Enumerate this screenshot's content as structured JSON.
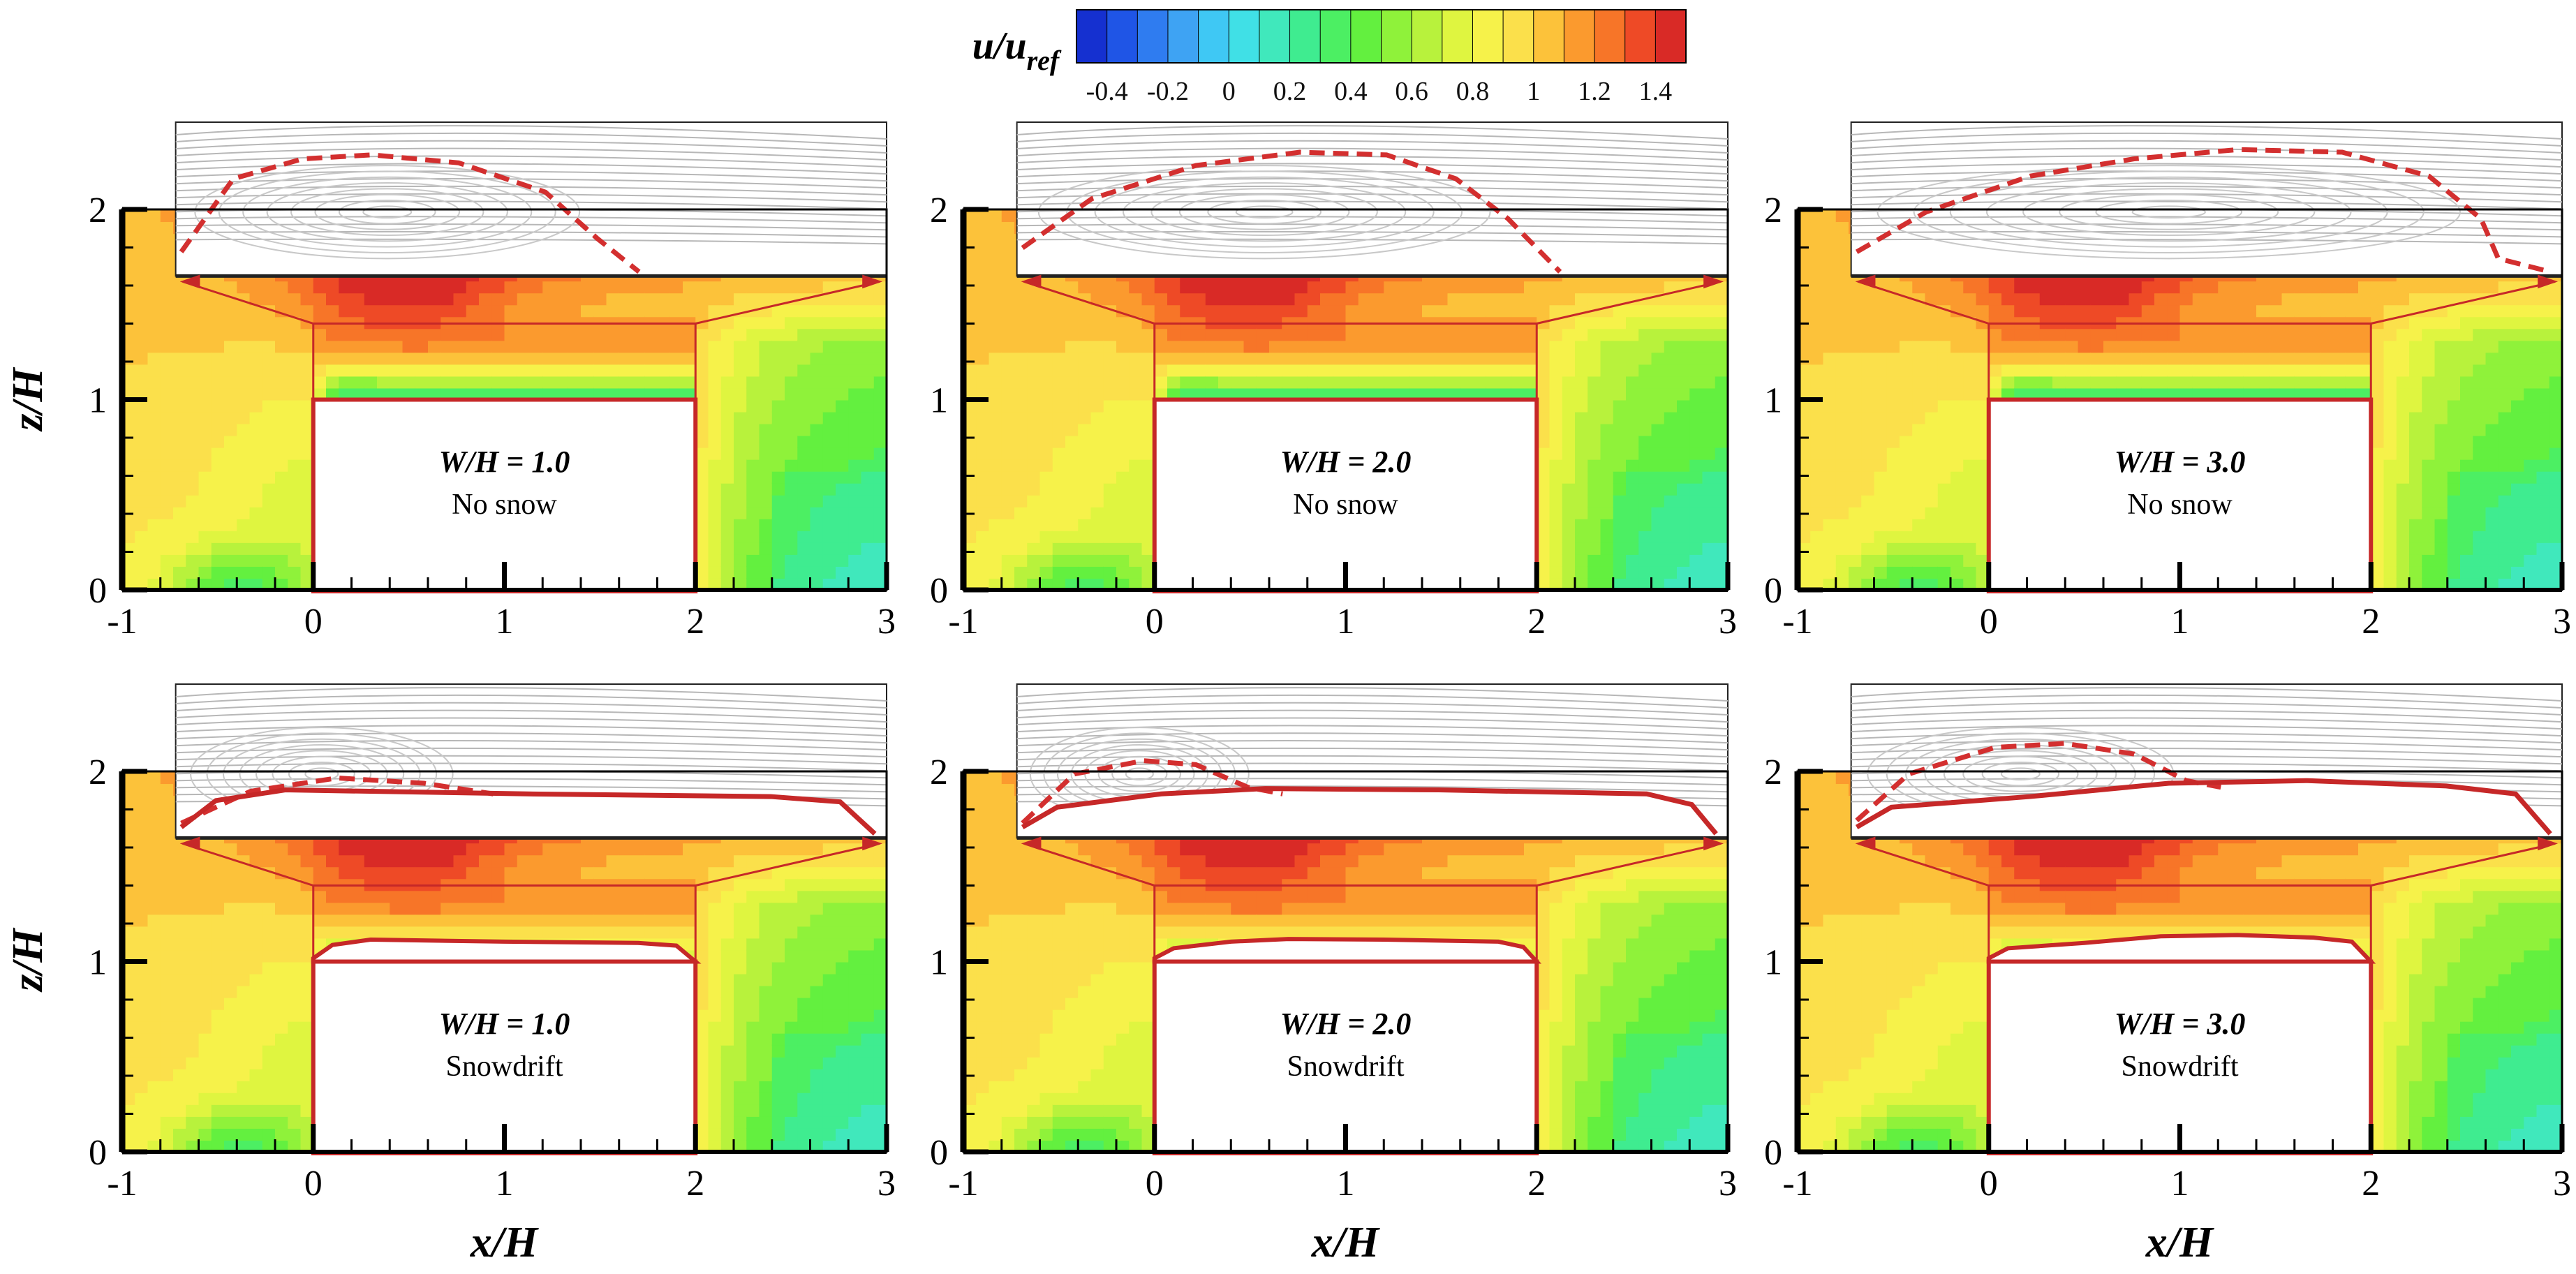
{
  "figure": {
    "colorbar": {
      "label_main": "u/u",
      "label_sub": "ref",
      "ticks": [
        "-0.4",
        "-0.2",
        "0",
        "0.2",
        "0.4",
        "0.6",
        "0.8",
        "1",
        "1.2",
        "1.4"
      ],
      "tick_values": [
        -0.4,
        -0.2,
        0,
        0.2,
        0.4,
        0.6,
        0.8,
        1.0,
        1.2,
        1.4
      ],
      "range": [
        -0.5,
        1.5
      ],
      "levels": 20,
      "colors": [
        "#1530d0",
        "#1f55e6",
        "#2f7cf0",
        "#3ea3f3",
        "#3fc8f4",
        "#40e0e6",
        "#40e8bc",
        "#3fec90",
        "#4cef63",
        "#63f03f",
        "#8ff23a",
        "#b8f23c",
        "#dff540",
        "#f6f24a",
        "#fbe04b",
        "#fcc23a",
        "#fb9a2e",
        "#f77528",
        "#ee4a26",
        "#d92a26"
      ]
    },
    "axis_labels": {
      "x": "x/H",
      "z": "z/H"
    }
  },
  "chart_data": {
    "type": "heatmap",
    "variable": "u/u_ref",
    "xlabel": "x/H",
    "ylabel": "z/H",
    "xlim": [
      -1,
      3
    ],
    "ylim": [
      0,
      2
    ],
    "xticks": [
      "-1",
      "0",
      "1",
      "2",
      "3"
    ],
    "yticks": [
      "0",
      "1",
      "2"
    ],
    "building": {
      "x_start": 0,
      "x_end": 2,
      "height": 1
    },
    "zoom_window": {
      "x": [
        0,
        2
      ],
      "z": [
        1,
        1.4
      ]
    },
    "panels": [
      {
        "row": 0,
        "col": 0,
        "width_ratio_label": "W/H = 1.0",
        "case_label": "No snow",
        "W_over_H": 1.0,
        "snow": false,
        "separation_line": [
          [
            0.0,
            0.15
          ],
          [
            0.15,
            0.7
          ],
          [
            0.35,
            0.85
          ],
          [
            0.55,
            0.88
          ],
          [
            0.8,
            0.82
          ],
          [
            1.05,
            0.6
          ],
          [
            1.2,
            0.25
          ],
          [
            1.32,
            0.0
          ]
        ],
        "snow_surface": []
      },
      {
        "row": 0,
        "col": 1,
        "width_ratio_label": "W/H = 2.0",
        "case_label": "No snow",
        "W_over_H": 2.0,
        "snow": false,
        "separation_line": [
          [
            0.0,
            0.18
          ],
          [
            0.2,
            0.55
          ],
          [
            0.5,
            0.8
          ],
          [
            0.8,
            0.9
          ],
          [
            1.05,
            0.88
          ],
          [
            1.25,
            0.7
          ],
          [
            1.4,
            0.4
          ],
          [
            1.55,
            0.0
          ]
        ],
        "snow_surface": []
      },
      {
        "row": 0,
        "col": 2,
        "width_ratio_label": "W/H = 3.0",
        "case_label": "No snow",
        "W_over_H": 3.0,
        "snow": false,
        "separation_line": [
          [
            0.0,
            0.15
          ],
          [
            0.2,
            0.45
          ],
          [
            0.5,
            0.72
          ],
          [
            0.8,
            0.85
          ],
          [
            1.1,
            0.92
          ],
          [
            1.4,
            0.9
          ],
          [
            1.65,
            0.72
          ],
          [
            1.8,
            0.4
          ],
          [
            1.85,
            0.1
          ],
          [
            2.0,
            0.0
          ]
        ],
        "snow_surface": []
      },
      {
        "row": 1,
        "col": 0,
        "width_ratio_label": "W/H = 1.0",
        "case_label": "Snowdrift",
        "W_over_H": 1.0,
        "snow": true,
        "separation_line": [
          [
            0.0,
            0.08
          ],
          [
            0.2,
            0.32
          ],
          [
            0.45,
            0.42
          ],
          [
            0.7,
            0.38
          ],
          [
            0.9,
            0.3
          ]
        ],
        "snow_surface": [
          [
            0.0,
            0.05
          ],
          [
            0.1,
            0.25
          ],
          [
            0.3,
            0.33
          ],
          [
            1.0,
            0.3
          ],
          [
            1.7,
            0.28
          ],
          [
            1.9,
            0.24
          ],
          [
            2.0,
            0.0
          ]
        ]
      },
      {
        "row": 1,
        "col": 1,
        "width_ratio_label": "W/H = 2.0",
        "case_label": "Snowdrift",
        "W_over_H": 2.0,
        "snow": true,
        "separation_line": [
          [
            0.0,
            0.08
          ],
          [
            0.15,
            0.45
          ],
          [
            0.35,
            0.55
          ],
          [
            0.5,
            0.52
          ],
          [
            0.65,
            0.35
          ],
          [
            0.75,
            0.3
          ]
        ],
        "snow_surface": [
          [
            0.0,
            0.05
          ],
          [
            0.1,
            0.2
          ],
          [
            0.4,
            0.3
          ],
          [
            0.7,
            0.34
          ],
          [
            1.2,
            0.33
          ],
          [
            1.8,
            0.3
          ],
          [
            1.93,
            0.22
          ],
          [
            2.0,
            0.0
          ]
        ]
      },
      {
        "row": 1,
        "col": 2,
        "width_ratio_label": "W/H = 3.0",
        "case_label": "Snowdrift",
        "W_over_H": 3.0,
        "snow": true,
        "separation_line": [
          [
            0.0,
            0.1
          ],
          [
            0.15,
            0.45
          ],
          [
            0.4,
            0.65
          ],
          [
            0.6,
            0.68
          ],
          [
            0.8,
            0.6
          ],
          [
            0.95,
            0.4
          ],
          [
            1.05,
            0.35
          ]
        ],
        "snow_surface": [
          [
            0.0,
            0.05
          ],
          [
            0.1,
            0.2
          ],
          [
            0.5,
            0.28
          ],
          [
            0.9,
            0.38
          ],
          [
            1.3,
            0.4
          ],
          [
            1.7,
            0.36
          ],
          [
            1.9,
            0.3
          ],
          [
            2.0,
            0.0
          ]
        ]
      }
    ]
  }
}
